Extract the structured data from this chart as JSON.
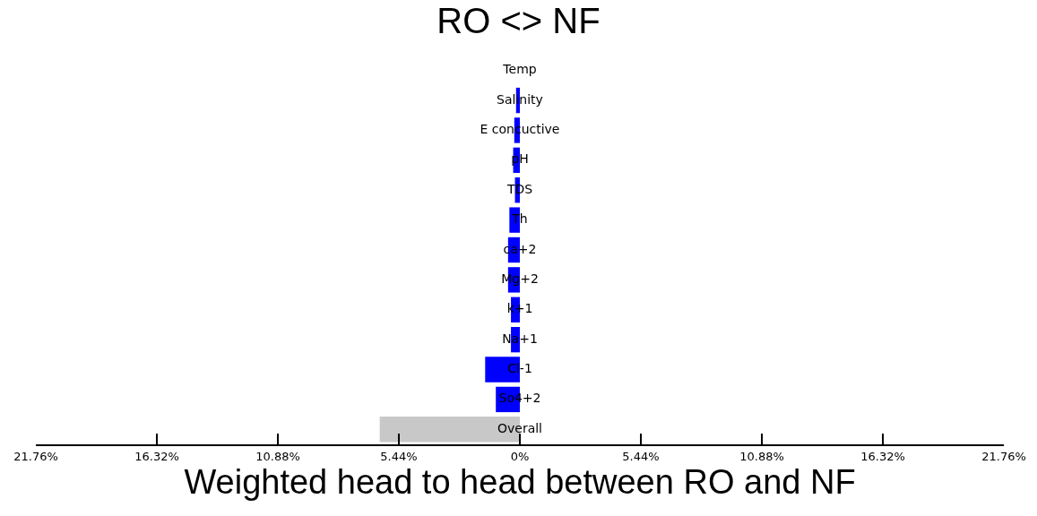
{
  "chart_data": {
    "type": "bar",
    "orientation": "horizontal",
    "title": "RO <> NF",
    "xlabel": "Weighted head to head between RO and NF",
    "categories": [
      "Temp",
      "Salinity",
      "E concuctive",
      "pH",
      "TDS",
      "Th",
      "ca+2",
      "Mg+2",
      "k+1",
      "Na+1",
      "Cl-1",
      "So4+2",
      "Overall"
    ],
    "values": [
      0,
      -0.17,
      -0.25,
      -0.3,
      -0.22,
      -0.47,
      -0.53,
      -0.53,
      -0.4,
      -0.4,
      -1.56,
      -1.08,
      -6.3
    ],
    "colors": [
      "#0000ff",
      "#0000ff",
      "#0000ff",
      "#0000ff",
      "#0000ff",
      "#0000ff",
      "#0000ff",
      "#0000ff",
      "#0000ff",
      "#0000ff",
      "#0000ff",
      "#0000ff",
      "#c8c8c8"
    ],
    "xlim": [
      -21.76,
      21.76
    ],
    "xticks": [
      {
        "value": -21.76,
        "label": "21.76%"
      },
      {
        "value": -16.32,
        "label": "16.32%"
      },
      {
        "value": -10.88,
        "label": "10.88%"
      },
      {
        "value": -5.44,
        "label": "5.44%"
      },
      {
        "value": 0,
        "label": "0%"
      },
      {
        "value": 5.44,
        "label": "5.44%"
      },
      {
        "value": 10.88,
        "label": "10.88%"
      },
      {
        "value": 16.32,
        "label": "16.32%"
      },
      {
        "value": 21.76,
        "label": "21.76%"
      }
    ]
  }
}
